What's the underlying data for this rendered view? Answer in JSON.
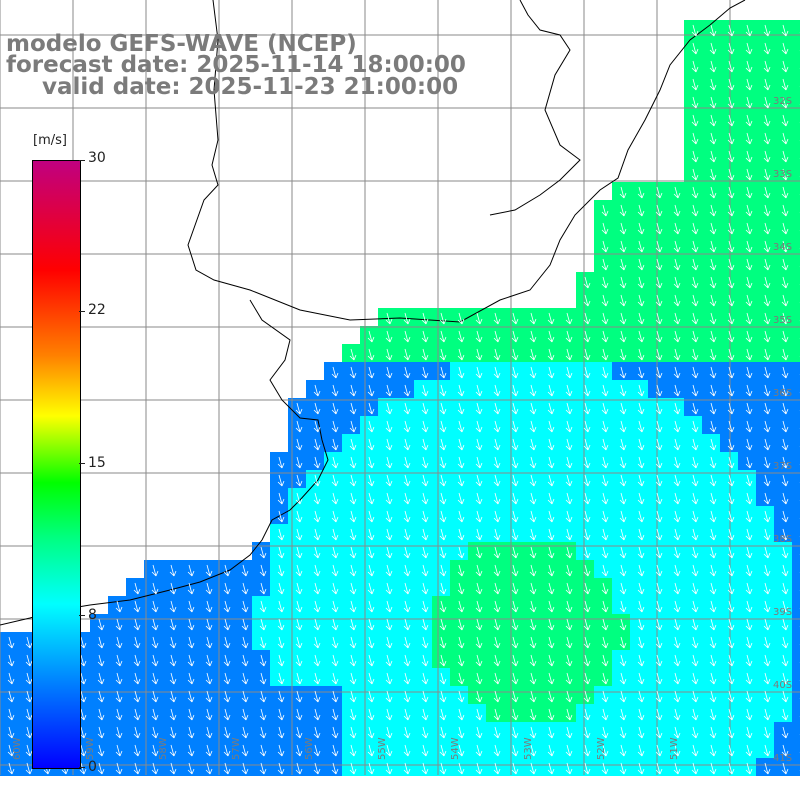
{
  "title": {
    "line1": "modelo GEFS-WAVE (NCEP)",
    "line2": "forecast date: 2025-11-14 18:00:00",
    "line3": "valid date: 2025-11-23 21:00:00"
  },
  "colorbar": {
    "unit": "[m/s]",
    "ticks": [
      "30",
      "22",
      "15",
      "8",
      "0"
    ],
    "colors": [
      "#0000ff",
      "#0080ff",
      "#00ffff",
      "#00ff80",
      "#00ff00",
      "#ffff00",
      "#ff8000",
      "#ff0000",
      "#c00080"
    ]
  },
  "lat_labels": [
    "32S",
    "33S",
    "34S",
    "35S",
    "36S",
    "37S",
    "38S",
    "39S",
    "40S",
    "41S"
  ],
  "lon_labels": [
    "60W",
    "59W",
    "58W",
    "57W",
    "56W",
    "55W",
    "54W",
    "53W",
    "52W",
    "51W"
  ]
}
